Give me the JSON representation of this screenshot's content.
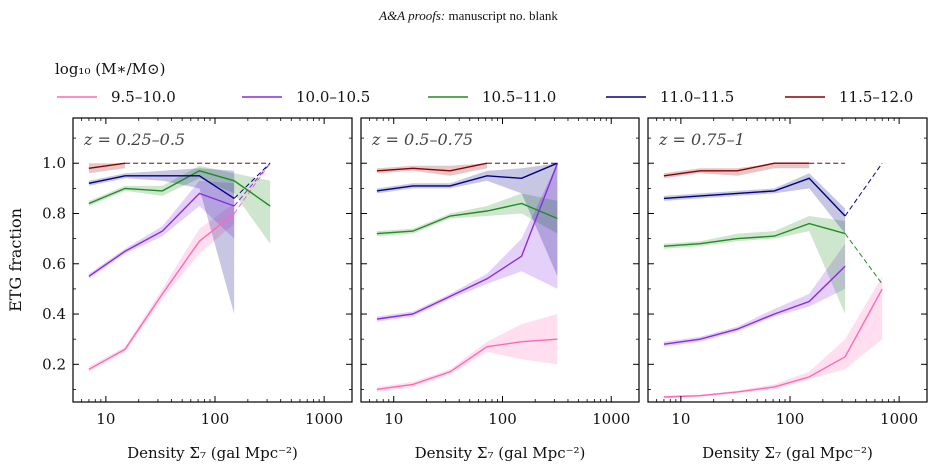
{
  "header": {
    "italic": "A&A proofs:",
    "rest": "manuscript no. blank"
  },
  "legend": {
    "title": "log₁₀ (M∗/M⊙)",
    "entries": [
      {
        "label": "9.5–10.0",
        "color": "#ff69b4"
      },
      {
        "label": "10.0–10.5",
        "color": "#8a2be2"
      },
      {
        "label": "10.5–11.0",
        "color": "#228b22"
      },
      {
        "label": "11.0–11.5",
        "color": "#000080"
      },
      {
        "label": "11.5–12.0",
        "color": "#8b0000"
      }
    ]
  },
  "chart_data": [
    {
      "type": "line",
      "annotation": "z = 0.25–0.5",
      "ylabel": "ETG fraction",
      "xlabel": "Density Σ₇ (gal Mpc⁻²)",
      "xscale": "log",
      "xlim": [
        5,
        1800
      ],
      "ylim": [
        0.05,
        1.18
      ],
      "xticks": [
        10,
        100,
        1000
      ],
      "xticklabels": [
        "10",
        "100",
        "1000"
      ],
      "yticks": [
        0.2,
        0.4,
        0.6,
        0.8,
        1.0
      ],
      "yticklabels": [
        "0.2",
        "0.4",
        "0.6",
        "0.8",
        "1.0"
      ],
      "series": [
        {
          "name": "9.5–10.0",
          "x": [
            7,
            15,
            33,
            72,
            150
          ],
          "y": [
            0.18,
            0.26,
            0.48,
            0.69,
            0.8
          ],
          "lo": [
            0.17,
            0.25,
            0.46,
            0.64,
            0.76
          ],
          "hi": [
            0.19,
            0.27,
            0.5,
            0.74,
            0.84
          ],
          "dashed": {
            "x": [
              150,
              320
            ],
            "y": [
              0.8,
              1.0
            ]
          }
        },
        {
          "name": "10.0–10.5",
          "x": [
            7,
            15,
            33,
            72,
            150
          ],
          "y": [
            0.55,
            0.65,
            0.73,
            0.88,
            0.83
          ],
          "lo": [
            0.54,
            0.64,
            0.71,
            0.83,
            0.7
          ],
          "hi": [
            0.56,
            0.66,
            0.75,
            0.93,
            0.92
          ],
          "dashed": {
            "x": [
              150,
              320
            ],
            "y": [
              0.83,
              1.0
            ]
          }
        },
        {
          "name": "10.5–11.0",
          "x": [
            7,
            15,
            33,
            72,
            150,
            320
          ],
          "y": [
            0.84,
            0.9,
            0.89,
            0.97,
            0.93,
            0.83
          ],
          "lo": [
            0.83,
            0.89,
            0.87,
            0.94,
            0.88,
            0.68
          ],
          "hi": [
            0.85,
            0.91,
            0.91,
            0.99,
            0.96,
            0.93
          ]
        },
        {
          "name": "11.0–11.5",
          "x": [
            7,
            15,
            33,
            72,
            150
          ],
          "y": [
            0.92,
            0.95,
            0.95,
            0.95,
            0.86
          ],
          "lo": [
            0.91,
            0.94,
            0.93,
            0.9,
            0.4
          ],
          "hi": [
            0.93,
            0.96,
            0.97,
            0.98,
            0.97
          ],
          "dashed": {
            "x": [
              150,
              320
            ],
            "y": [
              0.86,
              1.0
            ]
          }
        },
        {
          "name": "11.5–12.0",
          "x": [
            7,
            15
          ],
          "y": [
            0.98,
            1.0
          ],
          "lo": [
            0.96,
            0.98
          ],
          "hi": [
            1.0,
            1.0
          ],
          "dashed": {
            "x": [
              15,
              320
            ],
            "y": [
              1.0,
              1.0
            ]
          }
        }
      ]
    },
    {
      "type": "line",
      "annotation": "z = 0.5–0.75",
      "xlabel": "Density Σ₇ (gal Mpc⁻²)",
      "xscale": "log",
      "xlim": [
        5,
        1800
      ],
      "ylim": [
        0.05,
        1.18
      ],
      "xticks": [
        10,
        100,
        1000
      ],
      "xticklabels": [
        "10",
        "100",
        "1000"
      ],
      "series": [
        {
          "name": "9.5–10.0",
          "x": [
            7,
            15,
            33,
            72,
            150,
            320
          ],
          "y": [
            0.1,
            0.12,
            0.17,
            0.27,
            0.29,
            0.3
          ],
          "lo": [
            0.09,
            0.11,
            0.16,
            0.25,
            0.22,
            0.2
          ],
          "hi": [
            0.11,
            0.13,
            0.18,
            0.29,
            0.36,
            0.4
          ]
        },
        {
          "name": "10.0–10.5",
          "x": [
            7,
            15,
            33,
            72,
            150,
            320
          ],
          "y": [
            0.38,
            0.4,
            0.47,
            0.54,
            0.63,
            1.0
          ],
          "lo": [
            0.37,
            0.39,
            0.46,
            0.52,
            0.57,
            0.5
          ],
          "hi": [
            0.39,
            0.41,
            0.48,
            0.56,
            0.7,
            1.0
          ]
        },
        {
          "name": "10.5–11.0",
          "x": [
            7,
            15,
            33,
            72,
            150,
            320
          ],
          "y": [
            0.72,
            0.73,
            0.79,
            0.81,
            0.84,
            0.78
          ],
          "lo": [
            0.71,
            0.72,
            0.78,
            0.79,
            0.8,
            0.72
          ],
          "hi": [
            0.73,
            0.74,
            0.8,
            0.83,
            0.88,
            0.85
          ]
        },
        {
          "name": "11.0–11.5",
          "x": [
            7,
            15,
            33,
            72,
            150,
            320
          ],
          "y": [
            0.89,
            0.91,
            0.91,
            0.95,
            0.94,
            1.0
          ],
          "lo": [
            0.88,
            0.9,
            0.9,
            0.93,
            0.88,
            0.55
          ],
          "hi": [
            0.9,
            0.92,
            0.92,
            0.97,
            0.98,
            1.0
          ]
        },
        {
          "name": "11.5–12.0",
          "x": [
            7,
            15,
            33,
            72
          ],
          "y": [
            0.97,
            0.98,
            0.97,
            1.0
          ],
          "lo": [
            0.96,
            0.97,
            0.95,
            0.98
          ],
          "hi": [
            0.98,
            0.99,
            0.99,
            1.0
          ],
          "dashed": {
            "x": [
              72,
              320
            ],
            "y": [
              1.0,
              1.0
            ]
          }
        }
      ]
    },
    {
      "type": "line",
      "annotation": "z = 0.75–1",
      "xlabel": "Density Σ₇ (gal Mpc⁻²)",
      "xscale": "log",
      "xlim": [
        5,
        1800
      ],
      "ylim": [
        0.05,
        1.18
      ],
      "xticks": [
        10,
        100,
        1000
      ],
      "xticklabels": [
        "10",
        "100",
        "1000"
      ],
      "series": [
        {
          "name": "9.5–10.0",
          "x": [
            7,
            15,
            33,
            72,
            150,
            320,
            700
          ],
          "y": [
            0.07,
            0.075,
            0.09,
            0.11,
            0.15,
            0.23,
            0.5
          ],
          "lo": [
            0.065,
            0.07,
            0.085,
            0.1,
            0.14,
            0.18,
            0.3
          ],
          "hi": [
            0.075,
            0.08,
            0.095,
            0.12,
            0.17,
            0.3,
            0.55
          ]
        },
        {
          "name": "10.0–10.5",
          "x": [
            7,
            15,
            33,
            72,
            150,
            320
          ],
          "y": [
            0.28,
            0.3,
            0.34,
            0.4,
            0.45,
            0.59
          ],
          "lo": [
            0.27,
            0.29,
            0.33,
            0.39,
            0.43,
            0.5
          ],
          "hi": [
            0.29,
            0.31,
            0.35,
            0.42,
            0.48,
            0.68
          ]
        },
        {
          "name": "10.5–11.0",
          "x": [
            7,
            15,
            33,
            72,
            150,
            320
          ],
          "y": [
            0.67,
            0.68,
            0.7,
            0.71,
            0.76,
            0.72
          ],
          "lo": [
            0.66,
            0.67,
            0.69,
            0.7,
            0.73,
            0.4
          ],
          "hi": [
            0.68,
            0.69,
            0.72,
            0.73,
            0.79,
            0.77
          ],
          "dashed": {
            "x": [
              320,
              700
            ],
            "y": [
              0.72,
              0.52
            ]
          }
        },
        {
          "name": "11.0–11.5",
          "x": [
            7,
            15,
            33,
            72,
            150,
            320
          ],
          "y": [
            0.86,
            0.87,
            0.88,
            0.89,
            0.94,
            0.79
          ],
          "lo": [
            0.85,
            0.86,
            0.87,
            0.88,
            0.9,
            0.72
          ],
          "hi": [
            0.87,
            0.88,
            0.89,
            0.9,
            0.96,
            0.82
          ],
          "dashed": {
            "x": [
              320,
              700
            ],
            "y": [
              0.79,
              1.0
            ]
          }
        },
        {
          "name": "11.5–12.0",
          "x": [
            7,
            15,
            33,
            72,
            150
          ],
          "y": [
            0.95,
            0.97,
            0.97,
            1.0,
            1.0
          ],
          "lo": [
            0.94,
            0.96,
            0.95,
            0.98,
            0.98
          ],
          "hi": [
            0.96,
            0.98,
            0.98,
            1.0,
            1.0
          ],
          "dashed": {
            "x": [
              150,
              320
            ],
            "y": [
              1.0,
              1.0
            ]
          }
        }
      ]
    }
  ]
}
